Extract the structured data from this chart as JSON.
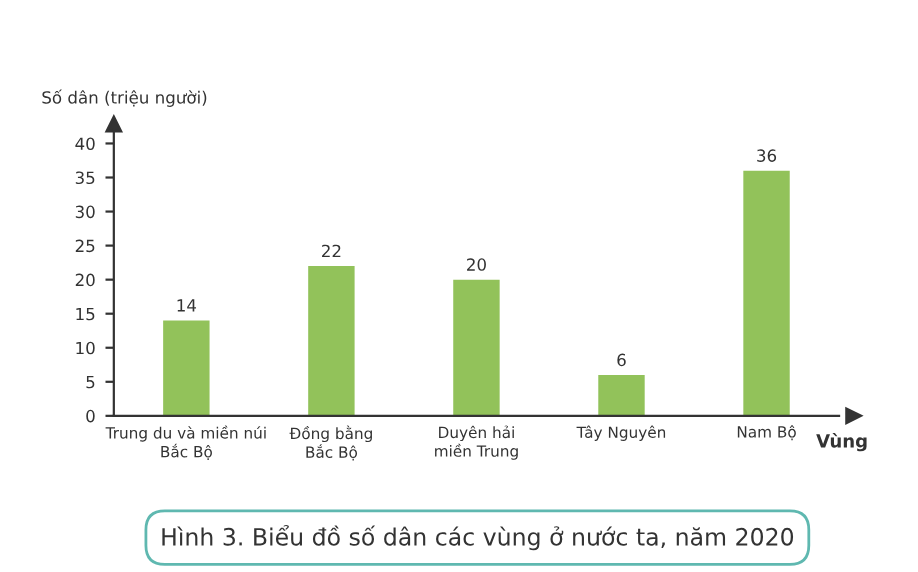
{
  "chart_data": {
    "type": "bar",
    "title": "Hình 3. Biểu đồ số dân các vùng ở nước ta, năm 2020",
    "ylabel": "Số dân (triệu người)",
    "xlabel": "Vùng",
    "categories": [
      "Trung du và miền núi\nBắc Bộ",
      "Đồng bằng\nBắc Bộ",
      "Duyên hải\nmiền Trung",
      "Tây Nguyên",
      "Nam Bộ"
    ],
    "values": [
      14,
      22,
      20,
      6,
      36
    ],
    "color": "#92c25a",
    "data_labels": true,
    "ylim": [
      0,
      42
    ],
    "yticks": [
      0,
      5,
      10,
      15,
      20,
      25,
      30,
      35,
      40
    ],
    "grid": false
  }
}
